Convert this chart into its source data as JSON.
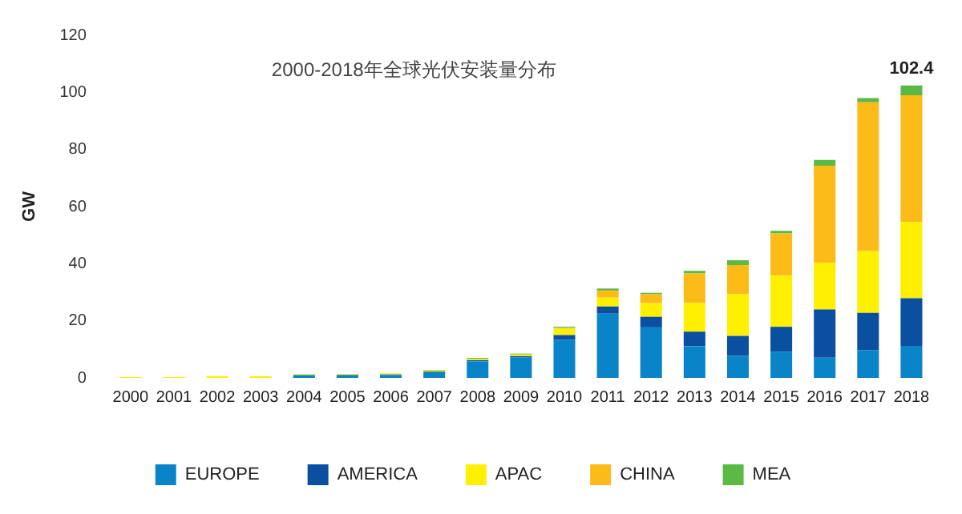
{
  "chart_data": {
    "type": "bar",
    "title": "2000-2018年全球光伏安装量分布",
    "ylabel": "GW",
    "stacked": true,
    "legend": "bottom",
    "grid": false,
    "categories": [
      "2000",
      "2001",
      "2002",
      "2003",
      "2004",
      "2005",
      "2006",
      "2007",
      "2008",
      "2009",
      "2010",
      "2011",
      "2012",
      "2013",
      "2014",
      "2015",
      "2016",
      "2017",
      "2018"
    ],
    "ylim": [
      0,
      120
    ],
    "yticks": [
      0,
      20,
      40,
      60,
      80,
      100,
      120
    ],
    "series": [
      {
        "name": "EUROPE",
        "color": "#0a84c8",
        "values": [
          0,
          0,
          0,
          0,
          0.9,
          1.0,
          1.0,
          2.0,
          5.8,
          7.1,
          13.3,
          22.5,
          17.7,
          11.1,
          7.7,
          9.2,
          7.1,
          9.7,
          11.2
        ]
      },
      {
        "name": "AMERICA",
        "color": "#0a4fa0",
        "values": [
          0,
          0,
          0,
          0,
          0.1,
          0.1,
          0.2,
          0.2,
          0.4,
          0.5,
          1.7,
          2.5,
          3.7,
          5.1,
          7.0,
          8.7,
          16.9,
          13.1,
          16.7
        ]
      },
      {
        "name": "APAC",
        "color": "#fff000",
        "values": [
          0.3,
          0.3,
          0.6,
          0.6,
          0.3,
          0.3,
          0.4,
          0.4,
          0.5,
          0.6,
          2.2,
          3.1,
          4.8,
          10.0,
          14.6,
          17.9,
          16.3,
          21.6,
          26.6
        ]
      },
      {
        "name": "CHINA",
        "color": "#fdbb17",
        "values": [
          0,
          0,
          0,
          0,
          0,
          0,
          0,
          0,
          0,
          0,
          0.3,
          2.5,
          3.1,
          10.4,
          10.2,
          14.8,
          34.0,
          52.1,
          44.5
        ]
      },
      {
        "name": "MEA",
        "color": "#5cb946",
        "values": [
          0,
          0,
          0,
          0,
          0.1,
          0,
          0,
          0.2,
          0.3,
          0.3,
          0.4,
          0.7,
          0.5,
          0.9,
          1.7,
          0.9,
          2.0,
          1.5,
          3.4
        ]
      }
    ],
    "totals": [
      null,
      null,
      null,
      null,
      null,
      null,
      null,
      null,
      null,
      null,
      null,
      null,
      null,
      null,
      null,
      null,
      null,
      null,
      "102.4"
    ]
  }
}
